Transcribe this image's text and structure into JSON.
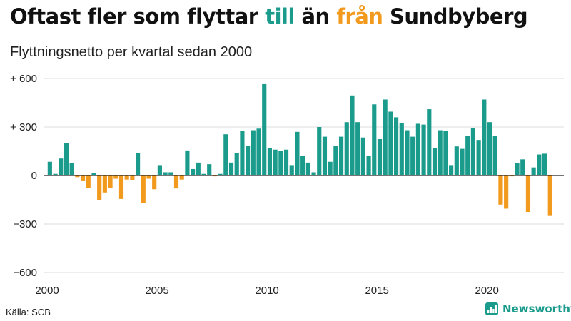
{
  "title": {
    "part1": "Oftast fler som flyttar ",
    "word_in": "till",
    "part2": " än ",
    "word_out": "från",
    "part3": " Sundbyberg"
  },
  "subtitle": "Flyttningsnetto per kvartal sedan 2000",
  "source": "Källa: SCB",
  "brand": {
    "name": "Newsworthy",
    "icon": "bar-chart-logo-icon"
  },
  "colors": {
    "positive": "#1a9b8c",
    "negative": "#f29a1e",
    "grid": "#dddddd",
    "zero_line": "#222222"
  },
  "chart_data": {
    "type": "bar",
    "title": "Oftast fler som flyttar till än från Sundbyberg",
    "subtitle": "Flyttningsnetto per kvartal sedan 2000",
    "x_unit": "quarter",
    "start": "2000 Q1",
    "xlim": [
      2000,
      2023.5
    ],
    "ylim": [
      -600,
      600
    ],
    "y_ticks": [
      {
        "value": 600,
        "label": "+ 600"
      },
      {
        "value": 300,
        "label": "+ 300"
      },
      {
        "value": 0,
        "label": "0"
      },
      {
        "value": -300,
        "label": "−300"
      },
      {
        "value": -600,
        "label": "−600"
      }
    ],
    "x_ticks": [
      "2000",
      "2005",
      "2010",
      "2015",
      "2020"
    ],
    "grid": true,
    "values": [
      85,
      10,
      105,
      200,
      75,
      -10,
      -35,
      -75,
      15,
      -150,
      -105,
      -75,
      -20,
      -145,
      -25,
      -30,
      140,
      -170,
      -20,
      -85,
      60,
      20,
      20,
      -80,
      -25,
      155,
      40,
      80,
      10,
      70,
      -5,
      10,
      255,
      80,
      140,
      275,
      185,
      280,
      290,
      565,
      170,
      160,
      150,
      160,
      60,
      270,
      120,
      80,
      20,
      300,
      240,
      85,
      185,
      240,
      330,
      495,
      330,
      235,
      120,
      440,
      225,
      470,
      395,
      360,
      325,
      280,
      240,
      320,
      315,
      410,
      170,
      280,
      275,
      60,
      180,
      165,
      245,
      295,
      220,
      470,
      330,
      245,
      -180,
      -205,
      -5,
      75,
      100,
      -225,
      50,
      130,
      135,
      -250
    ]
  }
}
